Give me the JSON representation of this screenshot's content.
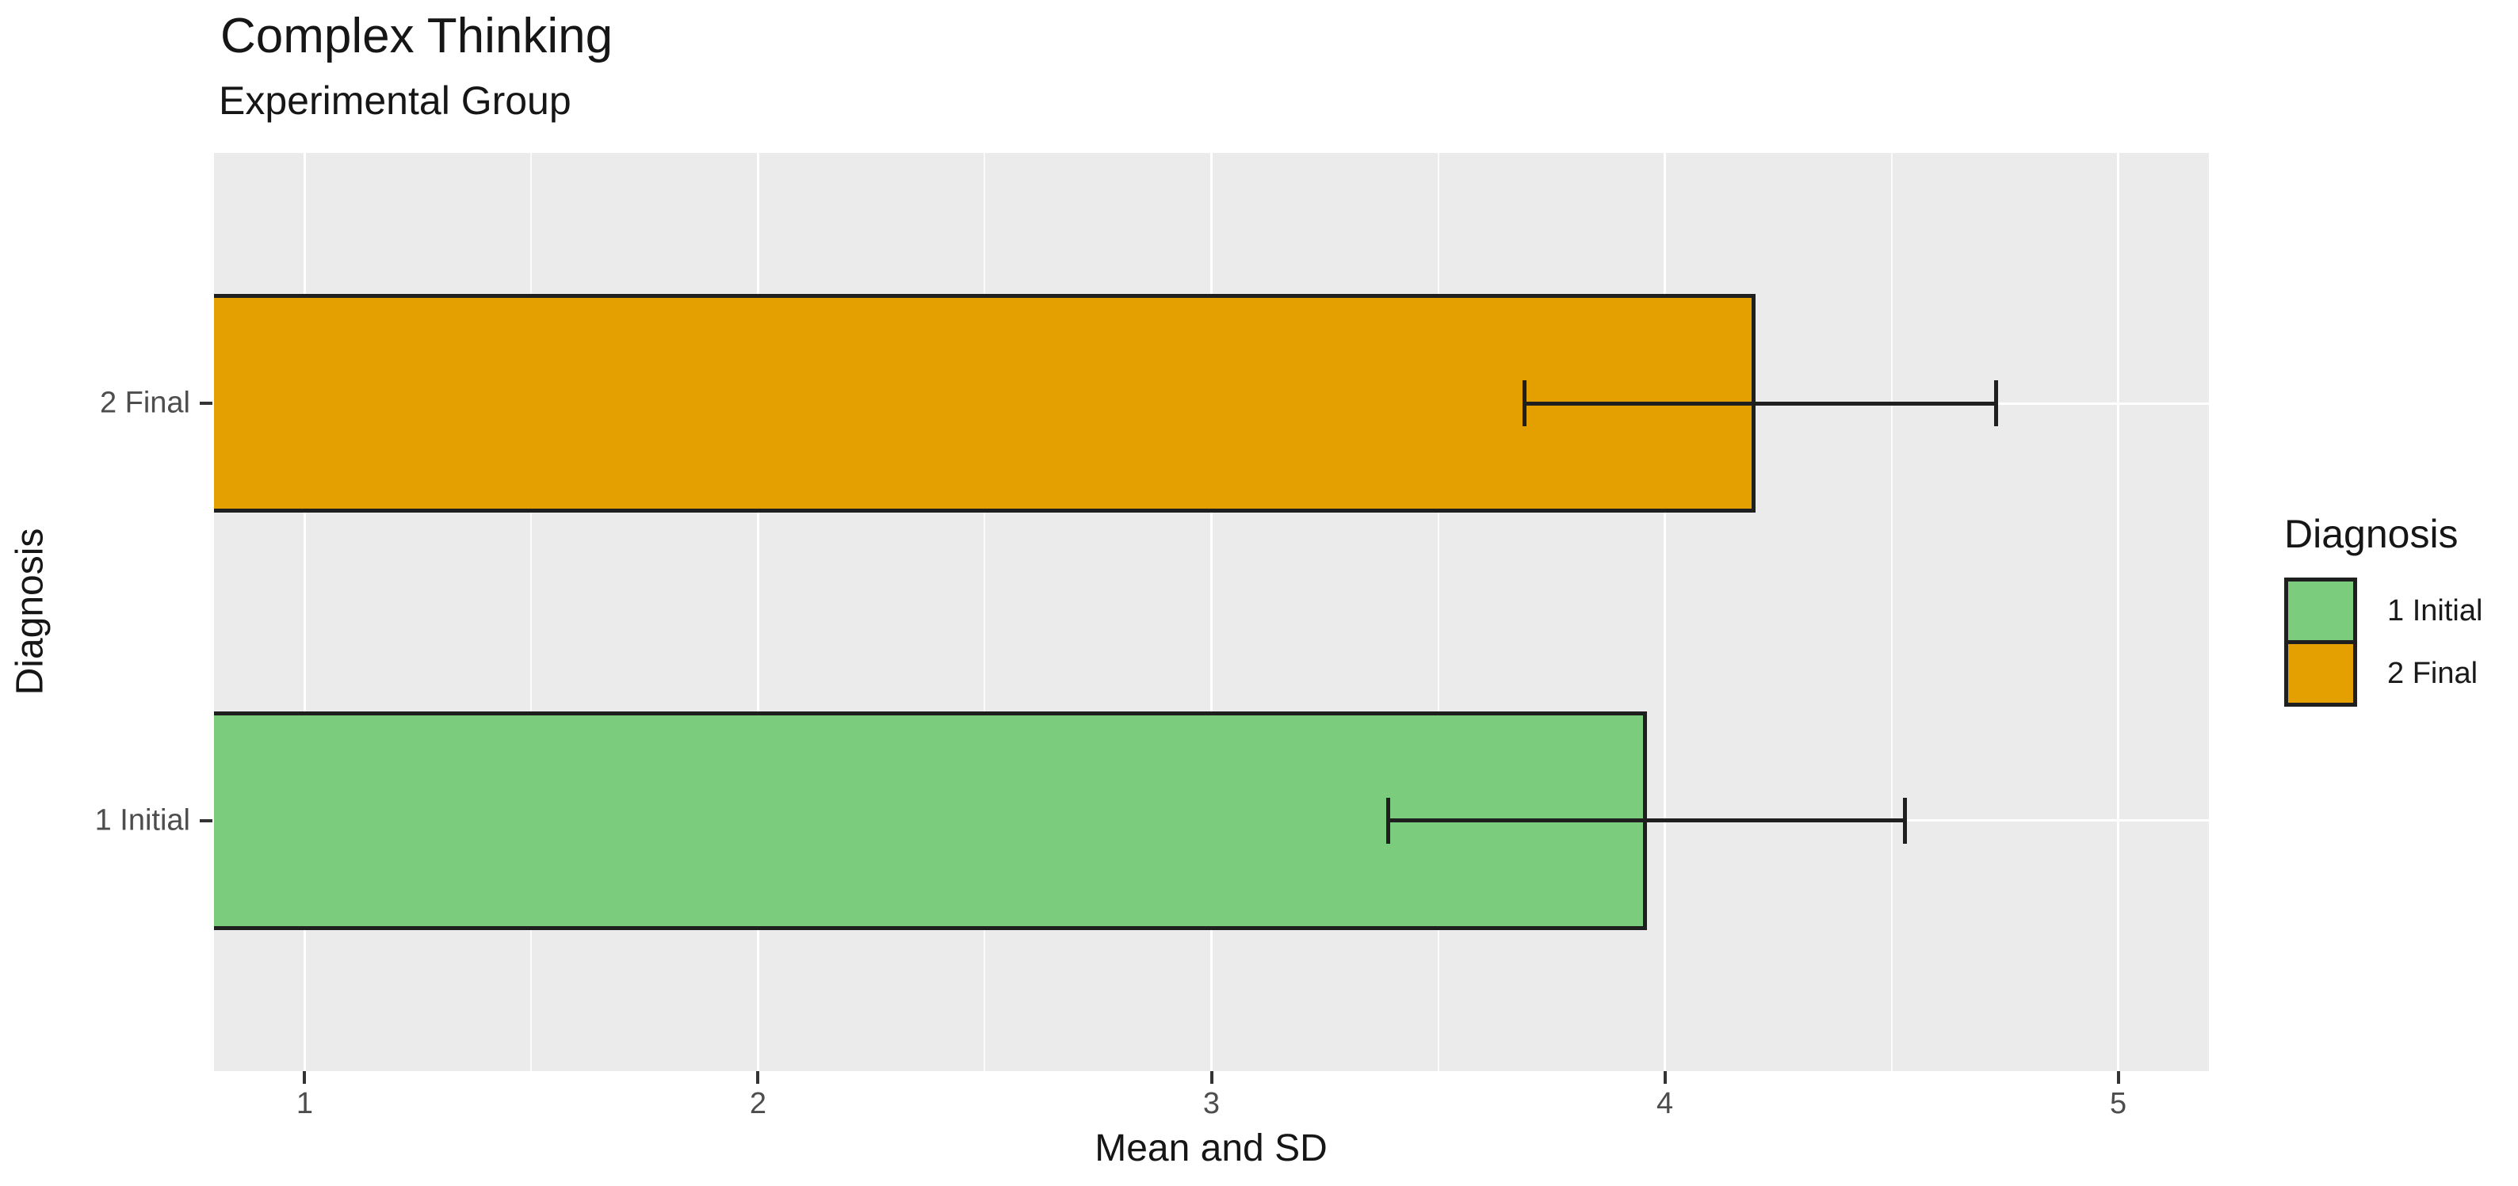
{
  "title": "Complex Thinking",
  "subtitle": "Experimental Group",
  "chart_data": {
    "type": "bar",
    "orientation": "horizontal",
    "title": "Complex Thinking",
    "subtitle": "Experimental Group",
    "xlabel": "Mean and SD",
    "ylabel": "Diagnosis",
    "categories": [
      "1 Initial",
      "2 Final"
    ],
    "values": [
      3.96,
      4.2
    ],
    "sd": [
      0.57,
      0.52
    ],
    "error_low": [
      3.39,
      3.69
    ],
    "error_high": [
      4.53,
      4.73
    ],
    "bar_colors": [
      "#7BCC7D",
      "#E3A000"
    ],
    "xlim": [
      0.8,
      5.2
    ],
    "x_ticks": [
      "1",
      "2",
      "3",
      "4",
      "5"
    ],
    "x_tick_values": [
      1,
      2,
      3,
      4,
      5
    ],
    "x_minor_values": [
      1.5,
      2.5,
      3.5,
      4.5
    ],
    "grid": true,
    "panel_background": "#EBEBEB",
    "gridline_color": "#FFFFFF",
    "bar_border_color": "#1F1F1F",
    "errorbar_color": "#1F1F1F",
    "legend_position": "right"
  },
  "legend": {
    "title": "Diagnosis",
    "items": [
      {
        "label": "1 Initial",
        "color": "#7BCC7D"
      },
      {
        "label": "2 Final",
        "color": "#E3A000"
      }
    ]
  },
  "axes": {
    "x_title": "Mean and SD",
    "y_title": "Diagnosis"
  }
}
